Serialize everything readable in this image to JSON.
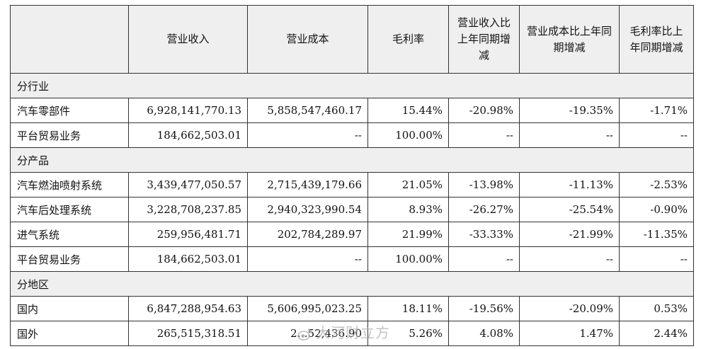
{
  "headers": [
    "",
    "营业收入",
    "营业成本",
    "毛利率",
    "营业收入比上年同期增减",
    "营业成本比上年同期增减",
    "毛利率比上年同期增减"
  ],
  "sections": [
    {
      "title": "分行业",
      "rows": [
        {
          "label": "汽车零部件",
          "revenue": "6,928,141,770.13",
          "cost": "5,858,547,460.17",
          "margin": "15.44%",
          "rev_change": "-20.98%",
          "cost_change": "-19.35%",
          "margin_change": "-1.71%"
        },
        {
          "label": "平台贸易业务",
          "revenue": "184,662,503.01",
          "cost": "--",
          "margin": "100.00%",
          "rev_change": "--",
          "cost_change": "--",
          "margin_change": "--"
        }
      ]
    },
    {
      "title": "分产品",
      "rows": [
        {
          "label": "汽车燃油喷射系统",
          "revenue": "3,439,477,050.57",
          "cost": "2,715,439,179.66",
          "margin": "21.05%",
          "rev_change": "-13.98%",
          "cost_change": "-11.13%",
          "margin_change": "-2.53%"
        },
        {
          "label": "汽车后处理系统",
          "revenue": "3,228,708,237.85",
          "cost": "2,940,323,990.54",
          "margin": "8.93%",
          "rev_change": "-26.27%",
          "cost_change": "-25.54%",
          "margin_change": "-0.90%"
        },
        {
          "label": "进气系统",
          "revenue": "259,956,481.71",
          "cost": "202,784,289.97",
          "margin": "21.99%",
          "rev_change": "-33.33%",
          "cost_change": "-21.99%",
          "margin_change": "-11.35%"
        },
        {
          "label": "平台贸易业务",
          "revenue": "184,662,503.01",
          "cost": "--",
          "margin": "100.00%",
          "rev_change": "--",
          "cost_change": "--",
          "margin_change": "--"
        }
      ]
    },
    {
      "title": "分地区",
      "rows": [
        {
          "label": "国内",
          "revenue": "6,847,288,954.63",
          "cost": "5,606,995,023.25",
          "margin": "18.11%",
          "rev_change": "-19.56%",
          "cost_change": "-20.09%",
          "margin_change": "0.53%"
        },
        {
          "label": "国外",
          "revenue": "265,515,318.51",
          "cost": "2…52,436.90",
          "margin": "5.26%",
          "rev_change": "4.08%",
          "cost_change": "1.47%",
          "margin_change": "2.44%"
        }
      ]
    }
  ],
  "watermark": "大河财立方"
}
